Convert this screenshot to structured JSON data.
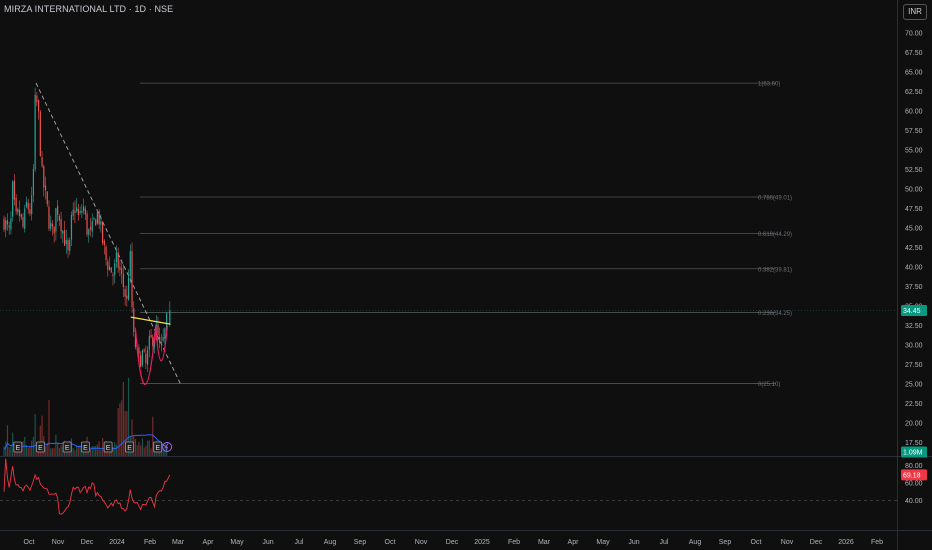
{
  "header": {
    "title": "MIRZA INTERNATIONAL LTD · 1D · NSE",
    "currency": "INR"
  },
  "colors": {
    "background": "#0f0f0f",
    "up": "#26a69a",
    "down": "#ef5350",
    "trend": "#9e9e9e",
    "resistance": "#f5e04b",
    "cup": "#e91e63",
    "fib": "#555555",
    "volume_ma": "#2962ff",
    "rsi": "#f23645"
  },
  "chart_data": [
    {
      "type": "candlestick",
      "title": "",
      "xlabel": "",
      "ylabel": "",
      "ylim": [
        15,
        71
      ],
      "y_ticks": [
        "70.00",
        "67.50",
        "65.00",
        "62.50",
        "60.00",
        "57.50",
        "55.00",
        "52.50",
        "50.00",
        "47.50",
        "45.00",
        "42.50",
        "40.00",
        "37.50",
        "35.00",
        "32.50",
        "30.00",
        "27.50",
        "25.00",
        "22.50",
        "20.00",
        "17.50"
      ],
      "x_tick_labels": [
        "Oct",
        "Nov",
        "Dec",
        "2024",
        "Feb",
        "Mar",
        "Apr",
        "May",
        "Jun",
        "Jul",
        "Aug",
        "Sep",
        "Oct",
        "Nov",
        "Dec",
        "2025",
        "Feb",
        "Mar",
        "Apr",
        "May",
        "Jun",
        "Jul",
        "Aug",
        "Sep",
        "Oct",
        "Nov",
        "Dec",
        "2026",
        "Feb"
      ],
      "price_path": {
        "dates": [
          "2023-09-15",
          "2023-10-10",
          "2023-10-20",
          "2023-11-01",
          "2023-11-15",
          "2023-12-01",
          "2023-12-15",
          "2024-01-03",
          "2024-01-12",
          "2024-01-20",
          "2024-02-01",
          "2024-02-15",
          "2024-03-01",
          "2024-03-15",
          "2024-04-01",
          "2024-04-15",
          "2024-05-01",
          "2024-05-15",
          "2024-06-04",
          "2024-06-15",
          "2024-07-01",
          "2024-07-15",
          "2024-08-01",
          "2024-08-15",
          "2024-09-01",
          "2024-09-15",
          "2024-10-01",
          "2024-10-15",
          "2024-11-01",
          "2024-11-15",
          "2024-12-01",
          "2024-12-15",
          "2025-01-01",
          "2025-01-15",
          "2025-01-28",
          "2025-02-05",
          "2025-02-12",
          "2025-02-20",
          "2025-03-01",
          "2025-03-15",
          "2025-04-01",
          "2025-04-10",
          "2025-04-25",
          "2025-05-10",
          "2025-05-25",
          "2025-06-10",
          "2025-06-25",
          "2025-07-05",
          "2025-07-10"
        ],
        "closes": [
          46,
          44,
          50,
          46,
          47,
          45,
          48,
          47,
          52,
          62,
          60,
          52,
          49,
          46,
          44,
          48,
          46,
          44,
          41,
          46,
          48,
          46,
          48,
          45,
          44,
          46,
          47,
          44,
          41,
          40,
          39,
          41,
          39,
          37,
          35,
          44,
          37,
          31,
          30,
          28,
          29,
          27,
          30,
          31,
          32,
          29,
          31,
          33,
          34.45
        ]
      },
      "trendline": {
        "from": [
          "2024-01-23",
          63.6
        ],
        "to": [
          "2025-08-31",
          25.0
        ]
      },
      "resistance": {
        "from": [
          "2025-02-10",
          33.6
        ],
        "to": [
          "2025-07-20",
          32.7
        ]
      },
      "cup": {
        "from": [
          "2025-03-01",
          32.0
        ],
        "bottom": [
          "2025-04-08",
          25.1
        ],
        "to": [
          "2025-05-22",
          32.5
        ]
      },
      "handle": {
        "from": [
          "2025-05-22",
          32.5
        ],
        "bottom": [
          "2025-06-12",
          28.0
        ],
        "to": [
          "2025-07-08",
          32.5
        ]
      },
      "fib_levels": [
        {
          "label": "1(63.60)",
          "value": 63.6
        },
        {
          "label": "0.786(49.01)",
          "value": 49.0
        },
        {
          "label": "0.618(44.29)",
          "value": 44.3
        },
        {
          "label": "0.382(39.81)",
          "value": 39.8
        },
        {
          "label": "0.236(34.25)",
          "value": 34.2
        },
        {
          "label": "0(25.10)",
          "value": 25.1
        }
      ],
      "last_price_label": "34.45"
    },
    {
      "type": "bar",
      "title": "",
      "series_label": "Volume",
      "last_value_label": "1.09M",
      "earnings_markers": {
        "label": "E",
        "dates": [
          "2023-11-10",
          "2024-02-10",
          "2024-05-28",
          "2024-08-10",
          "2024-11-10",
          "2025-02-05",
          "2025-05-30"
        ]
      },
      "dividend_marker_date": "2025-07-07"
    },
    {
      "type": "line",
      "title": "",
      "series_label": "RSI",
      "ylim": [
        18,
        86
      ],
      "y_ticks": [
        "80.00",
        "60.00",
        "40.00"
      ],
      "last_value_label": "69.18"
    }
  ]
}
